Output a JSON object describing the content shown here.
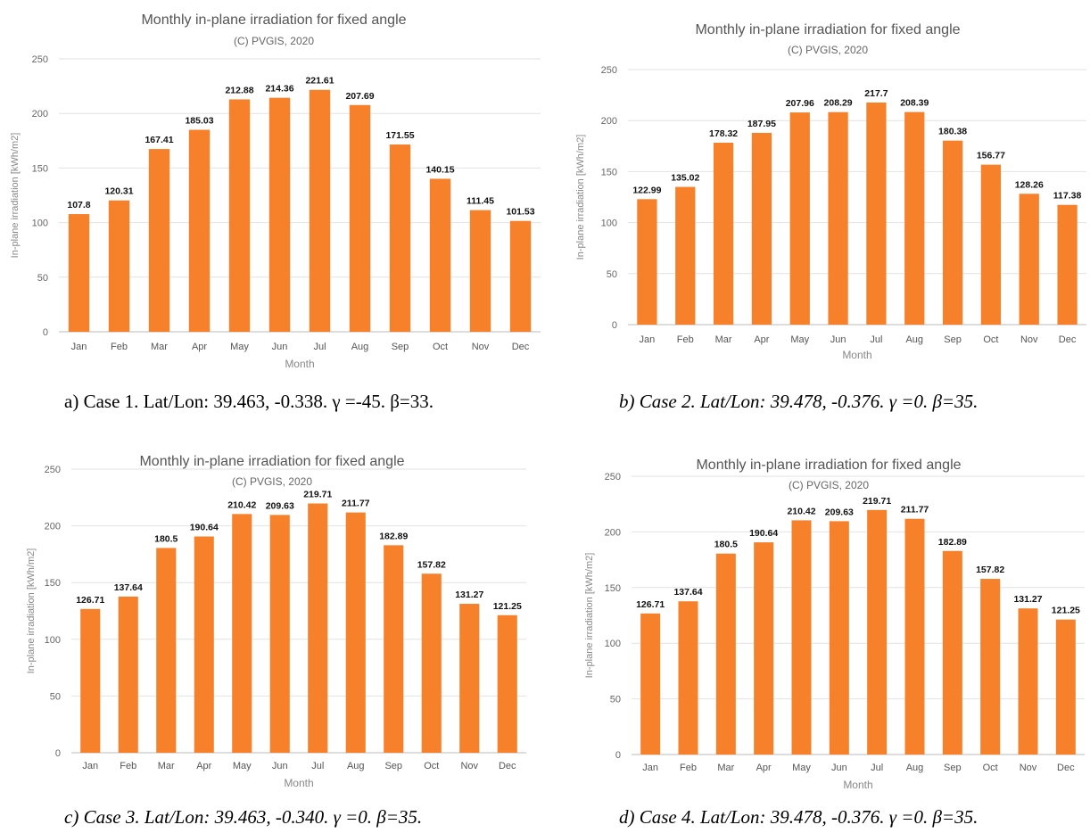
{
  "chart_data": [
    {
      "type": "bar",
      "title": "Monthly in-plane irradiation for fixed angle",
      "subtitle": "(C) PVGIS, 2020",
      "xlabel": "Month",
      "ylabel": "In-plane irradiation [kWh/m2]",
      "ylim": [
        0,
        250
      ],
      "yticks": [
        0,
        50,
        100,
        150,
        200,
        250
      ],
      "grid": true,
      "color": "#f7812a",
      "categories": [
        "Jan",
        "Feb",
        "Mar",
        "Apr",
        "May",
        "Jun",
        "Jul",
        "Aug",
        "Sep",
        "Oct",
        "Nov",
        "Dec"
      ],
      "values": [
        107.8,
        120.31,
        167.41,
        185.03,
        212.88,
        214.36,
        221.61,
        207.69,
        171.55,
        140.15,
        111.45,
        101.53
      ],
      "labels": [
        "107.8",
        "120.31",
        "167.41",
        "185.03",
        "212.88",
        "214.36",
        "221.61",
        "207.69",
        "171.55",
        "140.15",
        "111.45",
        "101.53"
      ],
      "caption": "a) Case 1. Lat/Lon: 39.463, -0.338. γ =-45. β=33."
    },
    {
      "type": "bar",
      "title": "Monthly in-plane irradiation for fixed angle",
      "subtitle": "(C) PVGIS, 2020",
      "xlabel": "Month",
      "ylabel": "In-plane irradiation [kWh/m2]",
      "ylim": [
        0,
        250
      ],
      "yticks": [
        0,
        50,
        100,
        150,
        200,
        250
      ],
      "grid": true,
      "color": "#f7812a",
      "categories": [
        "Jan",
        "Feb",
        "Mar",
        "Apr",
        "May",
        "Jun",
        "Jul",
        "Aug",
        "Sep",
        "Oct",
        "Nov",
        "Dec"
      ],
      "values": [
        122.99,
        135.02,
        178.32,
        187.95,
        207.96,
        208.29,
        217.7,
        208.39,
        180.38,
        156.77,
        128.26,
        117.38
      ],
      "labels": [
        "122.99",
        "135.02",
        "178.32",
        "187.95",
        "207.96",
        "208.29",
        "217.7",
        "208.39",
        "180.38",
        "156.77",
        "128.26",
        "117.38"
      ],
      "caption": "b) Case 2. Lat/Lon: 39.478, -0.376. γ =0. β=35."
    },
    {
      "type": "bar",
      "title": "Monthly in-plane irradiation for fixed angle",
      "subtitle": "(C) PVGIS, 2020",
      "xlabel": "Month",
      "ylabel": "In-plane irradiation [kWh/m2]",
      "ylim": [
        0,
        250
      ],
      "yticks": [
        0,
        50,
        100,
        150,
        200,
        250
      ],
      "grid": true,
      "color": "#f7812a",
      "categories": [
        "Jan",
        "Feb",
        "Mar",
        "Apr",
        "May",
        "Jun",
        "Jul",
        "Aug",
        "Sep",
        "Oct",
        "Nov",
        "Dec"
      ],
      "values": [
        126.71,
        137.64,
        180.5,
        190.64,
        210.42,
        209.63,
        219.71,
        211.77,
        182.89,
        157.82,
        131.27,
        121.25
      ],
      "labels": [
        "126.71",
        "137.64",
        "180.5",
        "190.64",
        "210.42",
        "209.63",
        "219.71",
        "211.77",
        "182.89",
        "157.82",
        "131.27",
        "121.25"
      ],
      "caption": "c) Case 3. Lat/Lon: 39.463, -0.340. γ =0. β=35."
    },
    {
      "type": "bar",
      "title": "Monthly in-plane irradiation for fixed angle",
      "subtitle": "(C) PVGIS, 2020",
      "xlabel": "Month",
      "ylabel": "In-plane irradiation [kWh/m2]",
      "ylim": [
        0,
        250
      ],
      "yticks": [
        0,
        50,
        100,
        150,
        200,
        250
      ],
      "grid": true,
      "color": "#f7812a",
      "categories": [
        "Jan",
        "Feb",
        "Mar",
        "Apr",
        "May",
        "Jun",
        "Jul",
        "Aug",
        "Sep",
        "Oct",
        "Nov",
        "Dec"
      ],
      "values": [
        126.71,
        137.64,
        180.5,
        190.64,
        210.42,
        209.63,
        219.71,
        211.77,
        182.89,
        157.82,
        131.27,
        121.25
      ],
      "labels": [
        "126.71",
        "137.64",
        "180.5",
        "190.64",
        "210.42",
        "209.63",
        "219.71",
        "211.77",
        "182.89",
        "157.82",
        "131.27",
        "121.25"
      ],
      "caption": "d) Case 4. Lat/Lon: 39.478, -0.376. γ =0. β=35."
    }
  ]
}
